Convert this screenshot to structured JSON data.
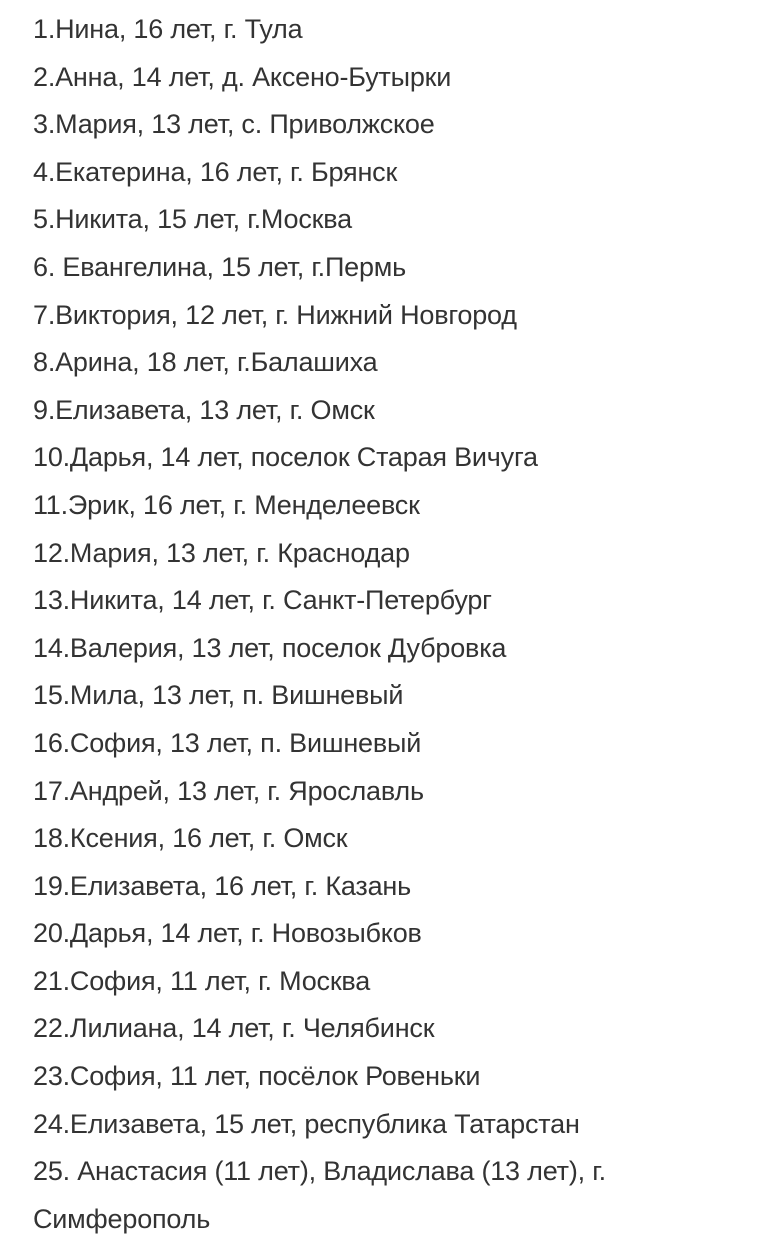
{
  "items": [
    "1.Нина, 16 лет, г. Тула",
    "2.Анна, 14 лет, д. Аксено-Бутырки",
    "3.Мария, 13 лет, с. Приволжское",
    "4.Екатерина, 16 лет, г. Брянск",
    "5.Никита, 15 лет, г.Москва",
    "6. Евангелина, 15 лет, г.Пермь",
    "7.Виктория, 12 лет, г. Нижний Новгород",
    "8.Арина, 18 лет, г.Балашиха",
    "9.Елизавета, 13 лет, г. Омск",
    "10.Дарья, 14 лет, поселок Старая Вичуга",
    "11.Эрик, 16 лет, г. Менделеевск",
    "12.Мария, 13 лет, г. Краснодар",
    "13.Никита, 14 лет, г. Санкт-Петербург",
    "14.Валерия, 13 лет, поселок Дубровка",
    "15.Мила, 13 лет, п. Вишневый",
    "16.София, 13 лет, п. Вишневый",
    "17.Андрей, 13 лет, г. Ярославль",
    "18.Ксения, 16 лет, г. Омск",
    "19.Елизавета, 16 лет, г. Казань",
    "20.Дарья, 14 лет, г. Новозыбков",
    "21.София, 11 лет, г. Москва",
    "22.Лилиана, 14 лет, г. Челябинск",
    "23.София, 11 лет, посёлок Ровеньки",
    "24.Елизавета, 15 лет, республика Татарстан",
    "25. Анастасия (11 лет), Владислава (13 лет), г. Симферополь"
  ],
  "colors": {
    "text": "#333333",
    "background": "#ffffff"
  }
}
